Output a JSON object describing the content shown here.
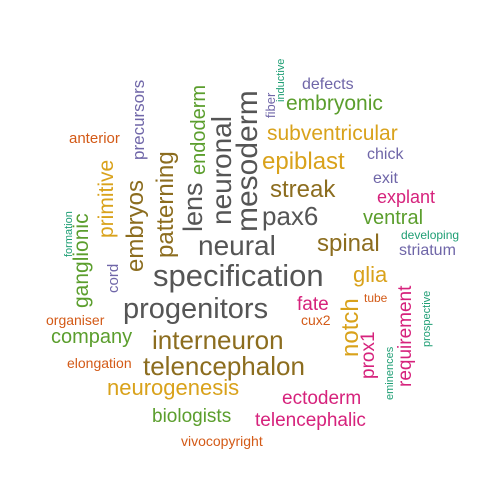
{
  "colors": {
    "gray": "#555555",
    "olive": "#8C6D1F",
    "gold": "#D9A21B",
    "green": "#5B9E2D",
    "magenta": "#D6227C",
    "purple": "#6F66A8",
    "orange": "#D35A17",
    "teal": "#1E9E74"
  },
  "words": [
    {
      "text": "neural",
      "weight": 10,
      "color": "gray"
    },
    {
      "text": "specification",
      "weight": 10,
      "color": "gray"
    },
    {
      "text": "progenitors",
      "weight": 9,
      "color": "gray"
    },
    {
      "text": "mesoderm",
      "weight": 9,
      "color": "gray"
    },
    {
      "text": "neuronal",
      "weight": 9,
      "color": "gray"
    },
    {
      "text": "lens",
      "weight": 8,
      "color": "gray"
    },
    {
      "text": "pax6",
      "weight": 8,
      "color": "gray"
    },
    {
      "text": "interneuron",
      "weight": 8,
      "color": "olive"
    },
    {
      "text": "telencephalon",
      "weight": 8,
      "color": "olive"
    },
    {
      "text": "patterning",
      "weight": 7,
      "color": "olive"
    },
    {
      "text": "embryos",
      "weight": 7,
      "color": "olive"
    },
    {
      "text": "streak",
      "weight": 6,
      "color": "olive"
    },
    {
      "text": "spinal",
      "weight": 6,
      "color": "olive"
    },
    {
      "text": "notch",
      "weight": 6,
      "color": "gold"
    },
    {
      "text": "epiblast",
      "weight": 6,
      "color": "gold"
    },
    {
      "text": "neurogenesis",
      "weight": 6,
      "color": "gold"
    },
    {
      "text": "subventricular",
      "weight": 5,
      "color": "gold"
    },
    {
      "text": "primitive",
      "weight": 5,
      "color": "gold"
    },
    {
      "text": "glia",
      "weight": 5,
      "color": "gold"
    },
    {
      "text": "endoderm",
      "weight": 5,
      "color": "green"
    },
    {
      "text": "embryonic",
      "weight": 5,
      "color": "green"
    },
    {
      "text": "ganglionic",
      "weight": 5,
      "color": "green"
    },
    {
      "text": "company",
      "weight": 5,
      "color": "green"
    },
    {
      "text": "ventral",
      "weight": 5,
      "color": "green"
    },
    {
      "text": "biologists",
      "weight": 4,
      "color": "green"
    },
    {
      "text": "ectoderm",
      "weight": 4,
      "color": "magenta"
    },
    {
      "text": "telencephalic",
      "weight": 4,
      "color": "magenta"
    },
    {
      "text": "fate",
      "weight": 4,
      "color": "magenta"
    },
    {
      "text": "prox1",
      "weight": 4,
      "color": "magenta"
    },
    {
      "text": "requirement",
      "weight": 4,
      "color": "magenta"
    },
    {
      "text": "explant",
      "weight": 4,
      "color": "magenta"
    },
    {
      "text": "precursors",
      "weight": 3,
      "color": "purple"
    },
    {
      "text": "defects",
      "weight": 3,
      "color": "purple"
    },
    {
      "text": "chick",
      "weight": 3,
      "color": "purple"
    },
    {
      "text": "exit",
      "weight": 3,
      "color": "purple"
    },
    {
      "text": "striatum",
      "weight": 3,
      "color": "purple"
    },
    {
      "text": "cord",
      "weight": 3,
      "color": "purple"
    },
    {
      "text": "fiber",
      "weight": 2,
      "color": "purple"
    },
    {
      "text": "anterior",
      "weight": 3,
      "color": "orange"
    },
    {
      "text": "organiser",
      "weight": 3,
      "color": "orange"
    },
    {
      "text": "elongation",
      "weight": 3,
      "color": "orange"
    },
    {
      "text": "cux2",
      "weight": 3,
      "color": "orange"
    },
    {
      "text": "tube",
      "weight": 2,
      "color": "orange"
    },
    {
      "text": "vivocopyright",
      "weight": 3,
      "color": "orange"
    },
    {
      "text": "inductive",
      "weight": 1,
      "color": "teal"
    },
    {
      "text": "formation",
      "weight": 1,
      "color": "teal"
    },
    {
      "text": "developing",
      "weight": 2,
      "color": "teal"
    },
    {
      "text": "prospective",
      "weight": 1,
      "color": "teal"
    },
    {
      "text": "eminences",
      "weight": 1,
      "color": "teal"
    }
  ]
}
